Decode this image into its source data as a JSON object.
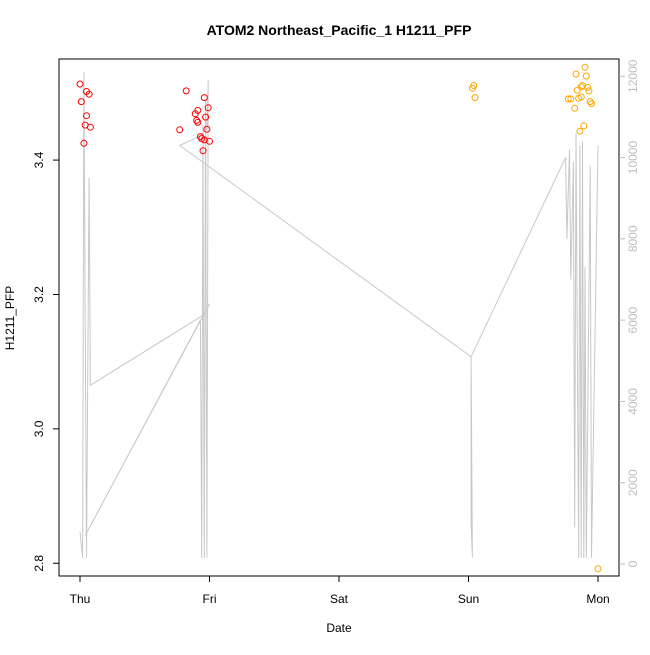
{
  "chart_data": {
    "type": "scatter",
    "title": "ATOM2 Northeast_Pacific_1 H1211_PFP",
    "xlabel": "Date",
    "ylabel": "H1211_PFP",
    "x_ticks": [
      "Thu",
      "Fri",
      "Sat",
      "Sun",
      "Mon"
    ],
    "xlim_days": [
      0,
      4
    ],
    "ylim": [
      2.79,
      3.54
    ],
    "y_ticks": [
      2.8,
      3.0,
      3.2,
      3.4
    ],
    "y2_ticks": [
      0,
      2000,
      4000,
      6000,
      8000,
      10000,
      12000
    ],
    "y2lim": [
      0,
      12400
    ],
    "grid": false,
    "point_series": [
      {
        "color": "#ff0000",
        "points": [
          [
            0.0,
            3.513
          ],
          [
            0.01,
            3.487
          ],
          [
            0.03,
            3.425
          ],
          [
            0.04,
            3.452
          ],
          [
            0.05,
            3.502
          ],
          [
            0.05,
            3.466
          ],
          [
            0.07,
            3.498
          ],
          [
            0.08,
            3.449
          ],
          [
            0.77,
            3.445
          ],
          [
            0.82,
            3.503
          ],
          [
            0.89,
            3.469
          ],
          [
            0.9,
            3.459
          ],
          [
            0.91,
            3.474
          ],
          [
            0.91,
            3.456
          ],
          [
            0.93,
            3.435
          ],
          [
            0.94,
            3.432
          ],
          [
            0.95,
            3.414
          ],
          [
            0.96,
            3.43
          ],
          [
            0.96,
            3.493
          ],
          [
            0.97,
            3.464
          ],
          [
            0.98,
            3.446
          ],
          [
            0.99,
            3.478
          ],
          [
            1.0,
            3.428
          ]
        ]
      },
      {
        "color": "#ffa500",
        "points": [
          [
            3.03,
            3.507
          ],
          [
            3.04,
            3.511
          ],
          [
            3.05,
            3.493
          ],
          [
            3.77,
            3.491
          ],
          [
            3.79,
            3.491
          ],
          [
            3.82,
            3.477
          ],
          [
            3.83,
            3.528
          ],
          [
            3.84,
            3.504
          ],
          [
            3.85,
            3.492
          ],
          [
            3.86,
            3.443
          ],
          [
            3.87,
            3.494
          ],
          [
            3.87,
            3.509
          ],
          [
            3.88,
            3.511
          ],
          [
            3.89,
            3.451
          ],
          [
            3.9,
            3.538
          ],
          [
            3.91,
            3.525
          ],
          [
            3.92,
            3.508
          ],
          [
            3.93,
            3.503
          ],
          [
            3.94,
            3.487
          ],
          [
            3.95,
            3.484
          ],
          [
            4.0,
            2.792
          ]
        ]
      }
    ],
    "line_series": {
      "color": "#c8c8c8",
      "axis": "right",
      "points": [
        [
          0.0,
          800
        ],
        [
          0.02,
          150
        ],
        [
          0.03,
          12100
        ],
        [
          0.05,
          150
        ],
        [
          0.07,
          9500
        ],
        [
          0.08,
          4400
        ],
        [
          0.94,
          6100
        ],
        [
          0.97,
          6200
        ],
        [
          1.0,
          6400
        ],
        [
          0.04,
          700
        ],
        [
          0.93,
          6000
        ],
        [
          0.94,
          150
        ],
        [
          0.95,
          10800
        ],
        [
          0.96,
          150
        ],
        [
          0.97,
          11400
        ],
        [
          0.98,
          150
        ],
        [
          0.99,
          11900
        ],
        [
          0.98,
          10700
        ],
        [
          0.91,
          10500
        ],
        [
          0.77,
          10300
        ],
        [
          3.02,
          5100
        ],
        [
          3.02,
          1000
        ],
        [
          3.03,
          150
        ],
        [
          3.02,
          5100
        ],
        [
          3.75,
          10000
        ],
        [
          3.76,
          8000
        ],
        [
          3.78,
          10200
        ],
        [
          3.79,
          7000
        ],
        [
          3.81,
          9900
        ],
        [
          3.82,
          900
        ],
        [
          3.83,
          10600
        ],
        [
          3.85,
          150
        ],
        [
          3.86,
          10300
        ],
        [
          3.87,
          150
        ],
        [
          3.88,
          10400
        ],
        [
          3.89,
          150
        ],
        [
          3.9,
          7300
        ],
        [
          3.91,
          150
        ],
        [
          3.94,
          9800
        ],
        [
          3.95,
          150
        ],
        [
          4.0,
          10300
        ]
      ]
    }
  }
}
